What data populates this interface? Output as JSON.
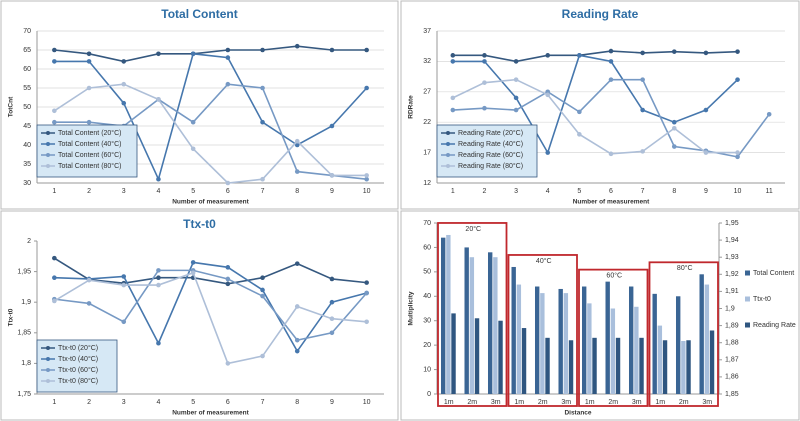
{
  "chart_data": [
    {
      "type": "line",
      "title": "Total Content",
      "ylabel": "TotCnt",
      "xlabel": "Number of measurement",
      "categories": [
        1,
        2,
        3,
        4,
        5,
        6,
        7,
        8,
        9,
        10
      ],
      "ylim": [
        30,
        70
      ],
      "yticks": [
        30,
        35,
        40,
        45,
        50,
        55,
        60,
        65,
        70
      ],
      "grid": true,
      "series": [
        {
          "name": "Total Content (20°C)",
          "color": "#35587f",
          "values": [
            65,
            64,
            62,
            64,
            64,
            65,
            65,
            66,
            65,
            65
          ]
        },
        {
          "name": "Total Content (40°C)",
          "color": "#4677ad",
          "values": [
            62,
            62,
            51,
            31,
            64,
            63,
            46,
            40,
            45,
            55
          ]
        },
        {
          "name": "Total Content (60°C)",
          "color": "#7699c4",
          "values": [
            46,
            46,
            45,
            52,
            46,
            56,
            55,
            33,
            32,
            31
          ]
        },
        {
          "name": "Total Content (80°C)",
          "color": "#aebfd8",
          "values": [
            49,
            55,
            56,
            52,
            39,
            30,
            31,
            41,
            32,
            32
          ]
        }
      ]
    },
    {
      "type": "line",
      "title": "Reading Rate",
      "ylabel": "RDRate",
      "xlabel": "Number of measurement",
      "categories": [
        1,
        2,
        3,
        4,
        5,
        6,
        7,
        8,
        9,
        10,
        11
      ],
      "ylim": [
        12,
        37
      ],
      "yticks": [
        12,
        17,
        22,
        27,
        32,
        37
      ],
      "grid": true,
      "series": [
        {
          "name": "Reading Rate (20°C)",
          "color": "#35587f",
          "values": [
            33,
            33,
            32,
            33,
            33,
            33.7,
            33.4,
            33.6,
            33.4,
            33.6,
            null
          ]
        },
        {
          "name": "Reading Rate (40°C)",
          "color": "#4677ad",
          "values": [
            32,
            32,
            26,
            17,
            33,
            32,
            24,
            22,
            24,
            29,
            null
          ]
        },
        {
          "name": "Reading Rate (60°C)",
          "color": "#7699c4",
          "values": [
            24,
            24.3,
            24,
            27,
            23.7,
            29,
            29,
            18,
            17.3,
            16.3,
            23.3
          ]
        },
        {
          "name": "Reading Rate (80°C)",
          "color": "#aebfd8",
          "values": [
            26,
            28.5,
            29,
            26.5,
            20,
            16.8,
            17.2,
            21,
            17,
            17,
            null
          ]
        }
      ]
    },
    {
      "type": "line",
      "title": "Ttx-t0",
      "ylabel": "Ttx-t0",
      "xlabel": "Number of measurement",
      "categories": [
        1,
        2,
        3,
        4,
        5,
        6,
        7,
        8,
        9,
        10
      ],
      "ylim": [
        1.75,
        2
      ],
      "yticks": [
        {
          "value": 1.75,
          "label": "1,75"
        },
        {
          "value": 1.8,
          "label": "1,8"
        },
        {
          "value": 1.85,
          "label": "1,85"
        },
        {
          "value": 1.9,
          "label": "1,9"
        },
        {
          "value": 1.95,
          "label": "1,95"
        },
        2
      ],
      "grid": false,
      "series": [
        {
          "name": "Ttx-t0 (20°C)",
          "color": "#35587f",
          "values": [
            1.972,
            1.937,
            1.931,
            1.94,
            1.94,
            1.93,
            1.94,
            1.963,
            1.938,
            1.932
          ]
        },
        {
          "name": "Ttx-t0 (40°C)",
          "color": "#4677ad",
          "values": [
            1.94,
            1.938,
            1.942,
            1.833,
            1.965,
            1.957,
            1.92,
            1.82,
            1.9,
            1.915
          ]
        },
        {
          "name": "Ttx-t0 (60°C)",
          "color": "#7699c4",
          "values": [
            1.905,
            1.898,
            1.868,
            1.952,
            1.952,
            1.938,
            1.91,
            1.838,
            1.85,
            1.915
          ]
        },
        {
          "name": "Ttx-t0 (80°C)",
          "color": "#aebfd8",
          "values": [
            1.902,
            1.936,
            1.928,
            1.928,
            1.948,
            1.8,
            1.812,
            1.893,
            1.873,
            1.868
          ]
        }
      ]
    },
    {
      "type": "bar",
      "ylabel": "Multiplicity",
      "xlabel": "Distance",
      "categories": [
        "1m",
        "2m",
        "3m",
        "1m",
        "2m",
        "3m",
        "1m",
        "2m",
        "3m",
        "1m",
        "2m",
        "3m"
      ],
      "groups": [
        "20°C",
        "40°C",
        "60°C",
        "80°C"
      ],
      "group_color": "#c0282d",
      "ylim": [
        0,
        70
      ],
      "yticks": [
        0,
        10,
        20,
        30,
        40,
        50,
        60,
        70
      ],
      "y2lim": [
        1.85,
        1.95
      ],
      "y2ticks": [
        {
          "value": 1.85,
          "label": "1,85"
        },
        {
          "value": 1.86,
          "label": "1,86"
        },
        {
          "value": 1.87,
          "label": "1,87"
        },
        {
          "value": 1.88,
          "label": "1,88"
        },
        {
          "value": 1.89,
          "label": "1,89"
        },
        {
          "value": 1.9,
          "label": "1,9"
        },
        {
          "value": 1.91,
          "label": "1,91"
        },
        {
          "value": 1.92,
          "label": "1,92"
        },
        {
          "value": 1.93,
          "label": "1,93"
        },
        {
          "value": 1.94,
          "label": "1,94"
        },
        {
          "value": 1.95,
          "label": "1,95"
        }
      ],
      "series": [
        {
          "name": "Total Content",
          "color": "#3a6594",
          "values": [
            64,
            60,
            58,
            52,
            44,
            43,
            44,
            46,
            44,
            41,
            40,
            49
          ]
        },
        {
          "name": "Ttx-t0",
          "color": "#a9bfdc",
          "axis": "y2",
          "values": [
            1.943,
            1.93,
            1.93,
            1.914,
            1.909,
            1.909,
            1.903,
            1.9,
            1.901,
            1.89,
            1.881,
            1.914
          ]
        },
        {
          "name": "Reading Rate",
          "color": "#2f5680",
          "values": [
            33,
            31,
            30,
            27,
            23,
            22,
            23,
            23,
            23,
            22,
            22,
            26
          ]
        }
      ]
    }
  ]
}
